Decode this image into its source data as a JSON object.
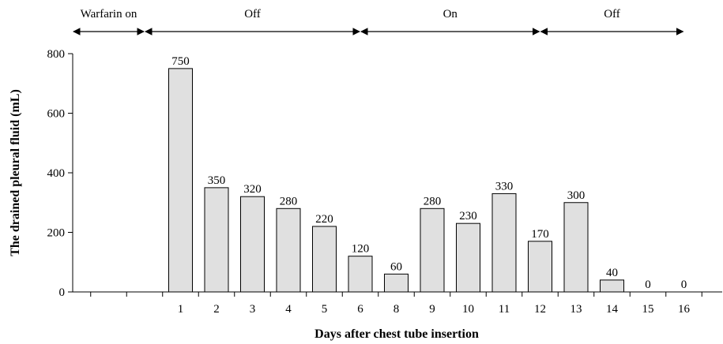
{
  "chart_data": {
    "type": "bar",
    "categories": [
      "",
      "",
      "1",
      "2",
      "3",
      "4",
      "5",
      "6",
      "8",
      "9",
      "10",
      "11",
      "12",
      "13",
      "14",
      "15",
      "16"
    ],
    "values": [
      null,
      null,
      750,
      350,
      320,
      280,
      220,
      120,
      60,
      280,
      230,
      330,
      170,
      300,
      40,
      0,
      0
    ],
    "data_labels": [
      "",
      "",
      "750",
      "350",
      "320",
      "280",
      "220",
      "120",
      "60",
      "280",
      "230",
      "330",
      "170",
      "300",
      "40",
      "0",
      "0"
    ],
    "title": "",
    "xlabel": "Days after chest tube insertion",
    "ylabel": "The drained pleural fluid (mL)",
    "ylim": [
      0,
      800
    ],
    "yticks": [
      0,
      200,
      400,
      600,
      800
    ],
    "grid": false,
    "bar_color": "#e0e0e0",
    "phases": [
      {
        "label": "Warfarin on",
        "start": 0,
        "end": 2
      },
      {
        "label": "Off",
        "start": 2,
        "end": 8
      },
      {
        "label": "On",
        "start": 8,
        "end": 13
      },
      {
        "label": "Off",
        "start": 13,
        "end": 17
      }
    ]
  }
}
